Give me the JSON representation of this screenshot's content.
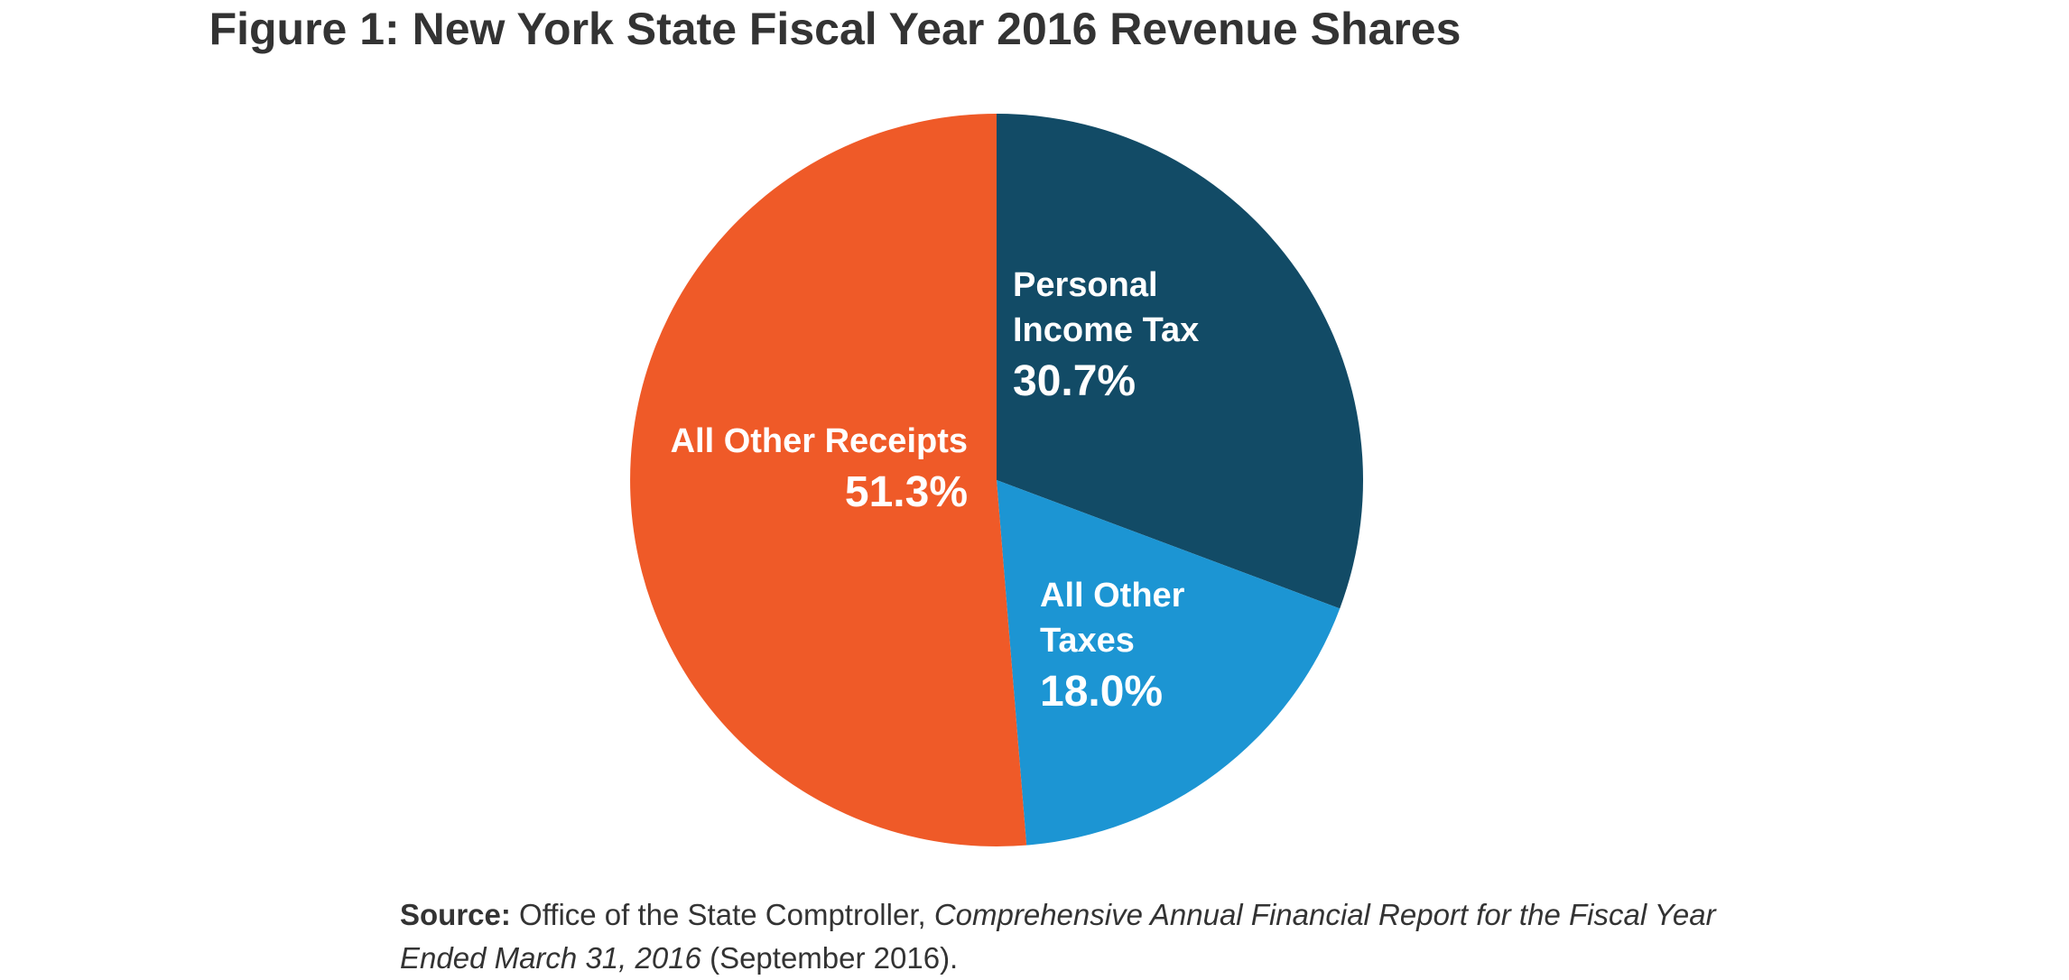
{
  "chart_data": {
    "type": "pie",
    "title": "Figure 1: New York State Fiscal Year 2016 Revenue Shares",
    "slices": [
      {
        "label": [
          "Personal",
          "Income Tax"
        ],
        "pct_label": "30.7%",
        "value": 30.7,
        "color": "#124B66"
      },
      {
        "label": [
          "All Other",
          "Taxes"
        ],
        "pct_label": "18.0%",
        "value": 18.0,
        "color": "#1C95D3"
      },
      {
        "label": [
          "All Other Receipts"
        ],
        "pct_label": "51.3%",
        "value": 51.3,
        "color": "#EF5A28"
      }
    ]
  },
  "source": {
    "label": "Source:",
    "text_plain": "Office of the State Comptroller,",
    "text_italic": "Comprehensive Annual Financial Report for the Fiscal Year Ended March 31, 2016",
    "text_end": "(September 2016)."
  }
}
